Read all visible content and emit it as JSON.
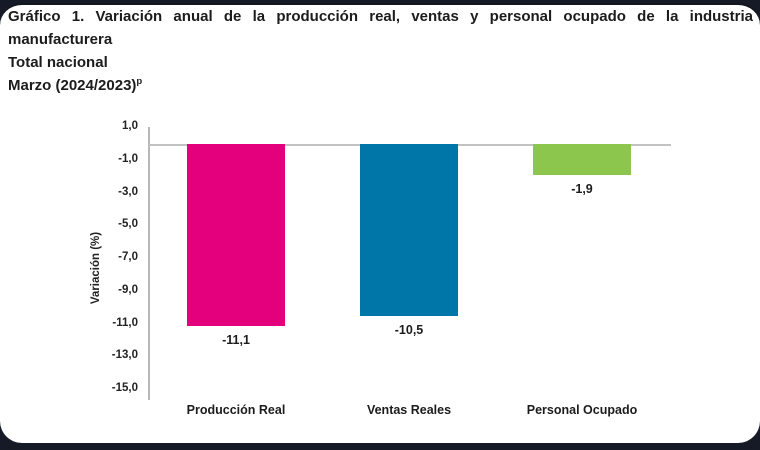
{
  "chart_data": {
    "type": "bar",
    "title": "Gráfico 1. Variación anual de la producción real, ventas y personal ocupado de la industria manufacturera",
    "subtitle": "Total nacional",
    "period": "Marzo (2024/2023)",
    "period_superscript": "p",
    "categories": [
      "Producción Real",
      "Ventas Reales",
      "Personal Ocupado"
    ],
    "values": [
      -11.1,
      -10.5,
      -1.9
    ],
    "value_labels": [
      "-11,1",
      "-10,5",
      "-1,9"
    ],
    "bar_colors": [
      "#e4007c",
      "#0076a8",
      "#8dc64c"
    ],
    "ylabel": "Variación (%)",
    "ylim": [
      -15.0,
      1.0
    ],
    "ytick_labels": [
      "1,0",
      "-1,0",
      "-3,0",
      "-5,0",
      "-7,0",
      "-9,0",
      "-11,0",
      "-13,0",
      "-15,0"
    ],
    "grid": "zero-line-only",
    "legend": "none"
  },
  "colors": {
    "frame_background": "#151a26",
    "card_background": "#ffffff",
    "text": "#1c1c1c",
    "axis_line": "#b8b8b8",
    "zero_line": "#c2c2c2"
  }
}
